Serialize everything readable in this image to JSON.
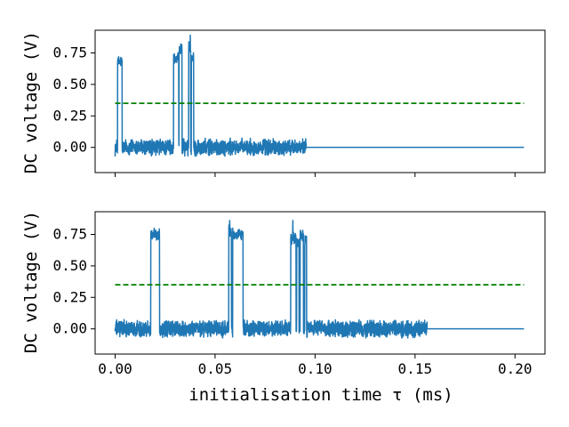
{
  "chart_data": [
    {
      "type": "line",
      "title": "",
      "xlabel": "",
      "ylabel": "DC voltage (V)",
      "xlim": [
        -0.01,
        0.215
      ],
      "ylim": [
        -0.2,
        0.93
      ],
      "xticks": [
        0.0,
        0.05,
        0.1,
        0.15,
        0.2
      ],
      "xtick_labels": [
        "",
        "",
        "",
        "",
        ""
      ],
      "yticks": [
        0.0,
        0.25,
        0.5,
        0.75
      ],
      "ytick_labels": [
        "0.00",
        "0.25",
        "0.50",
        "0.75"
      ],
      "grid": false,
      "noise_amplitude": 0.05,
      "signal_end": 0.0955,
      "x_max": 0.2045,
      "threshold": {
        "value": 0.35,
        "color": "#008000",
        "style": "dashed"
      },
      "series": [
        {
          "color": "#1f77b4",
          "pulses": [
            {
              "x0": 0.0012,
              "x1": 0.0035,
              "level": 0.68
            },
            {
              "x0": 0.0292,
              "x1": 0.0318,
              "level": 0.7
            },
            {
              "x0": 0.032,
              "x1": 0.0335,
              "level": 0.78
            },
            {
              "x0": 0.0368,
              "x1": 0.0378,
              "level": 0.8
            },
            {
              "x0": 0.0381,
              "x1": 0.0393,
              "level": 0.72
            }
          ],
          "spikes": [
            {
              "x": 0.0376,
              "y": 0.89
            }
          ]
        }
      ]
    },
    {
      "type": "line",
      "title": "",
      "xlabel": "initialisation time τ (ms)",
      "ylabel": "DC voltage (V)",
      "xlim": [
        -0.01,
        0.215
      ],
      "ylim": [
        -0.2,
        0.93
      ],
      "xticks": [
        0.0,
        0.05,
        0.1,
        0.15,
        0.2
      ],
      "xtick_labels": [
        "0.00",
        "0.05",
        "0.10",
        "0.15",
        "0.20"
      ],
      "yticks": [
        0.0,
        0.25,
        0.5,
        0.75
      ],
      "ytick_labels": [
        "0.00",
        "0.25",
        "0.50",
        "0.75"
      ],
      "grid": false,
      "noise_amplitude": 0.05,
      "signal_end": 0.156,
      "x_max": 0.2045,
      "threshold": {
        "value": 0.35,
        "color": "#008000",
        "style": "dashed"
      },
      "series": [
        {
          "color": "#1f77b4",
          "pulses": [
            {
              "x0": 0.0178,
              "x1": 0.0222,
              "level": 0.75
            },
            {
              "x0": 0.0568,
              "x1": 0.0582,
              "level": 0.78
            },
            {
              "x0": 0.0588,
              "x1": 0.064,
              "level": 0.75
            },
            {
              "x0": 0.0878,
              "x1": 0.0905,
              "level": 0.72
            },
            {
              "x0": 0.0908,
              "x1": 0.092,
              "level": 0.7
            },
            {
              "x0": 0.0925,
              "x1": 0.0942,
              "level": 0.74
            },
            {
              "x0": 0.0948,
              "x1": 0.0958,
              "level": 0.7
            }
          ],
          "spikes": [
            {
              "x": 0.0573,
              "y": 0.86
            },
            {
              "x": 0.0889,
              "y": 0.86
            }
          ]
        }
      ]
    }
  ]
}
